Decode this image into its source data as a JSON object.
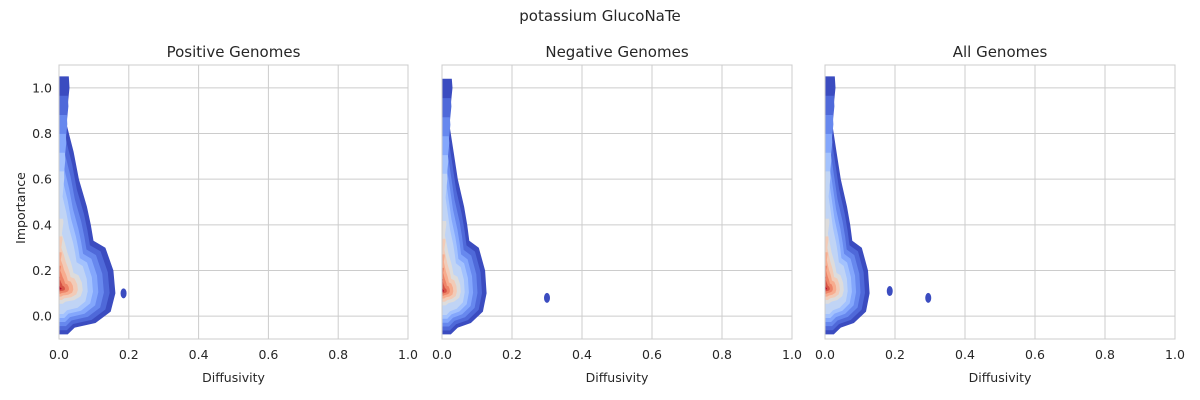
{
  "figure": {
    "suptitle": "potassium GlucoNaTe"
  },
  "colors": {
    "grid": "#cccccc",
    "frame": "#cccccc",
    "text": "#262626",
    "density_levels": [
      "#3b4cc0",
      "#4f69d9",
      "#6788ee",
      "#84a7fc",
      "#a3c2fe",
      "#c0d4f5",
      "#dddcdc",
      "#f2cbb7",
      "#f7ac8e",
      "#ee8468",
      "#d65244",
      "#b40426"
    ]
  },
  "chart_data": [
    {
      "type": "kde-density",
      "title": "Positive Genomes",
      "xlabel": "Diffusivity",
      "ylabel": "Importance",
      "xlim": [
        0,
        1
      ],
      "ylim": [
        -0.1,
        1.1
      ],
      "xticks": [
        "0.0",
        "0.2",
        "0.4",
        "0.6",
        "0.8",
        "1.0"
      ],
      "yticks": [
        "0.0",
        "0.2",
        "0.4",
        "0.6",
        "0.8",
        "1.0"
      ],
      "grid": true,
      "density_peak": {
        "x": 0.01,
        "y": 0.12
      },
      "outer_extent": {
        "x_max": 0.19,
        "y_min": -0.08,
        "y_max": 1.05
      },
      "islands": [
        {
          "x": 0.185,
          "y": 0.1
        }
      ]
    },
    {
      "type": "kde-density",
      "title": "Negative Genomes",
      "xlabel": "Diffusivity",
      "ylabel": "",
      "xlim": [
        0,
        1
      ],
      "ylim": [
        -0.1,
        1.1
      ],
      "xticks": [
        "0.0",
        "0.2",
        "0.4",
        "0.6",
        "0.8",
        "1.0"
      ],
      "yticks": [],
      "grid": true,
      "density_peak": {
        "x": 0.01,
        "y": 0.11
      },
      "outer_extent": {
        "x_max": 0.15,
        "y_min": -0.08,
        "y_max": 1.04
      },
      "islands": [
        {
          "x": 0.3,
          "y": 0.08
        }
      ]
    },
    {
      "type": "kde-density",
      "title": "All Genomes",
      "xlabel": "Diffusivity",
      "ylabel": "",
      "xlim": [
        0,
        1
      ],
      "ylim": [
        -0.1,
        1.1
      ],
      "xticks": [
        "0.0",
        "0.2",
        "0.4",
        "0.6",
        "0.8",
        "1.0"
      ],
      "yticks": [],
      "grid": true,
      "density_peak": {
        "x": 0.01,
        "y": 0.12
      },
      "outer_extent": {
        "x_max": 0.15,
        "y_min": -0.08,
        "y_max": 1.05
      },
      "islands": [
        {
          "x": 0.185,
          "y": 0.11
        },
        {
          "x": 0.295,
          "y": 0.08
        }
      ]
    }
  ]
}
